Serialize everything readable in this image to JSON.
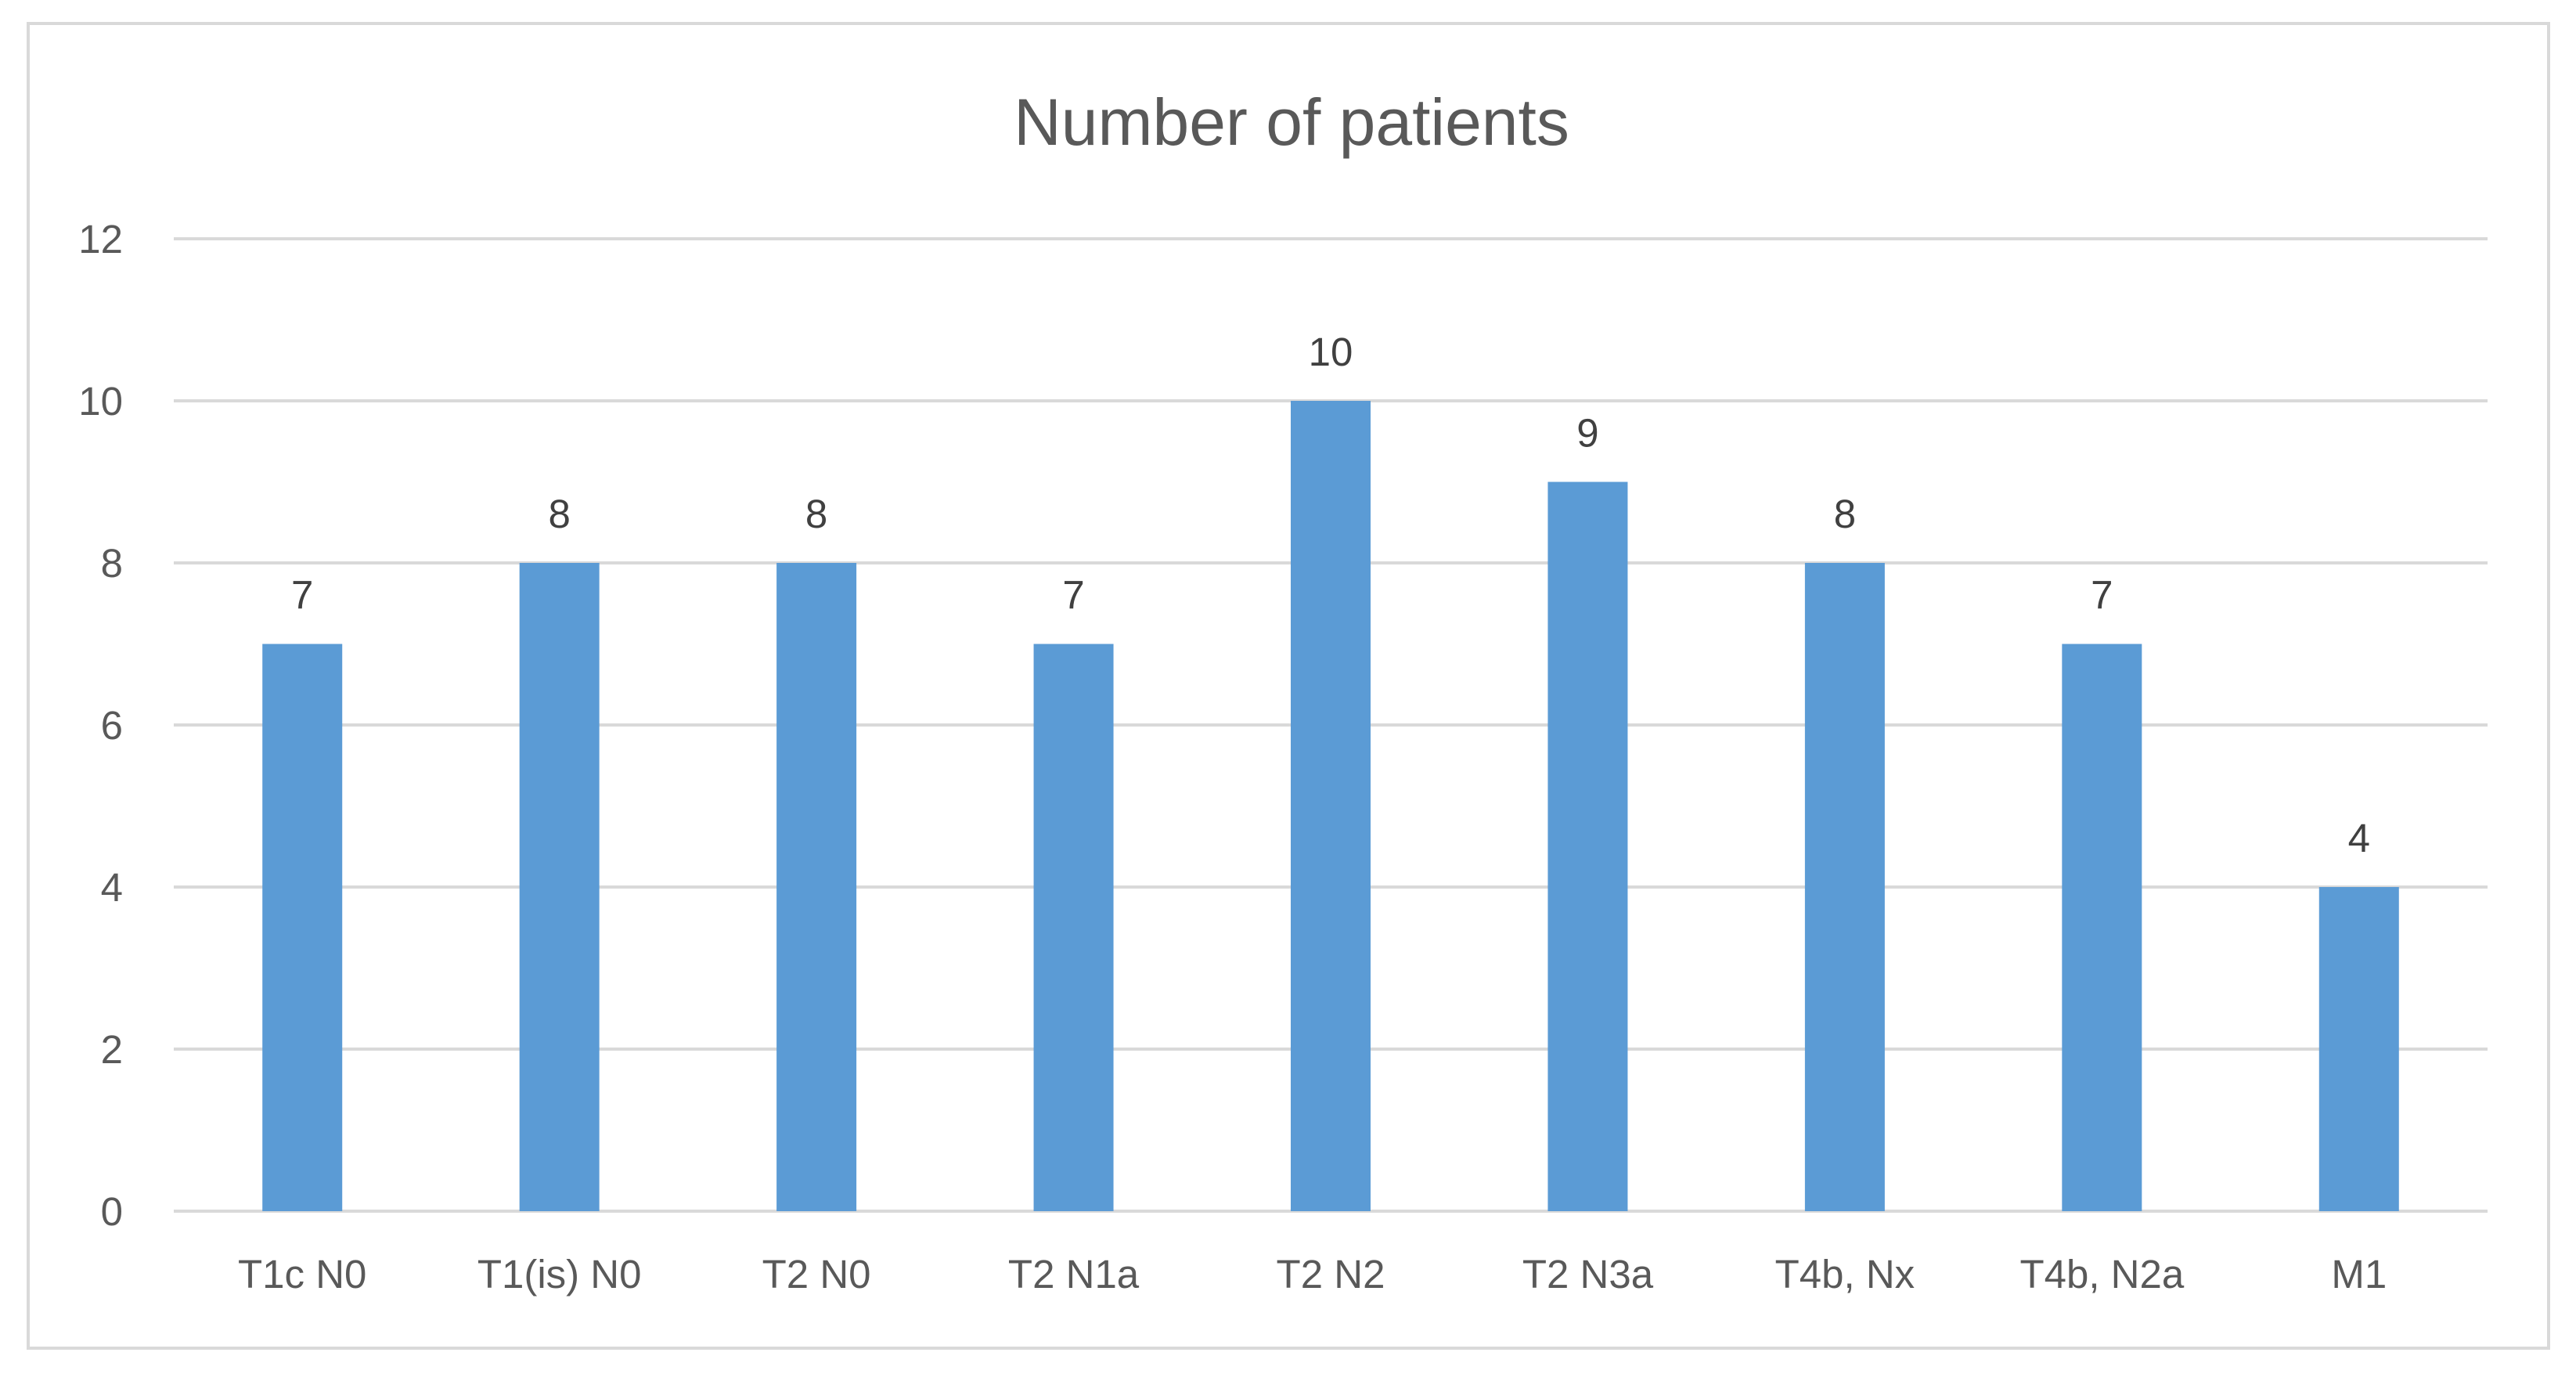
{
  "chart_data": {
    "type": "bar",
    "title": "Number of patients",
    "xlabel": "",
    "ylabel": "",
    "categories": [
      "T1c N0",
      "T1(is) N0",
      "T2 N0",
      "T2 N1a",
      "T2 N2",
      "T2 N3a",
      "T4b, Nx",
      "T4b, N2a",
      "M1"
    ],
    "values": [
      7,
      8,
      8,
      7,
      10,
      9,
      8,
      7,
      4
    ],
    "ylim": [
      0,
      12
    ],
    "yticks": [
      "0",
      "2",
      "4",
      "6",
      "8",
      "10",
      "12"
    ],
    "grid": true,
    "legend": "none",
    "data_labels": true,
    "colors": {
      "bar": "#5B9BD5",
      "gridline": "#D9D9D9",
      "text": "#595959",
      "frame": "#D9D9D9"
    }
  }
}
